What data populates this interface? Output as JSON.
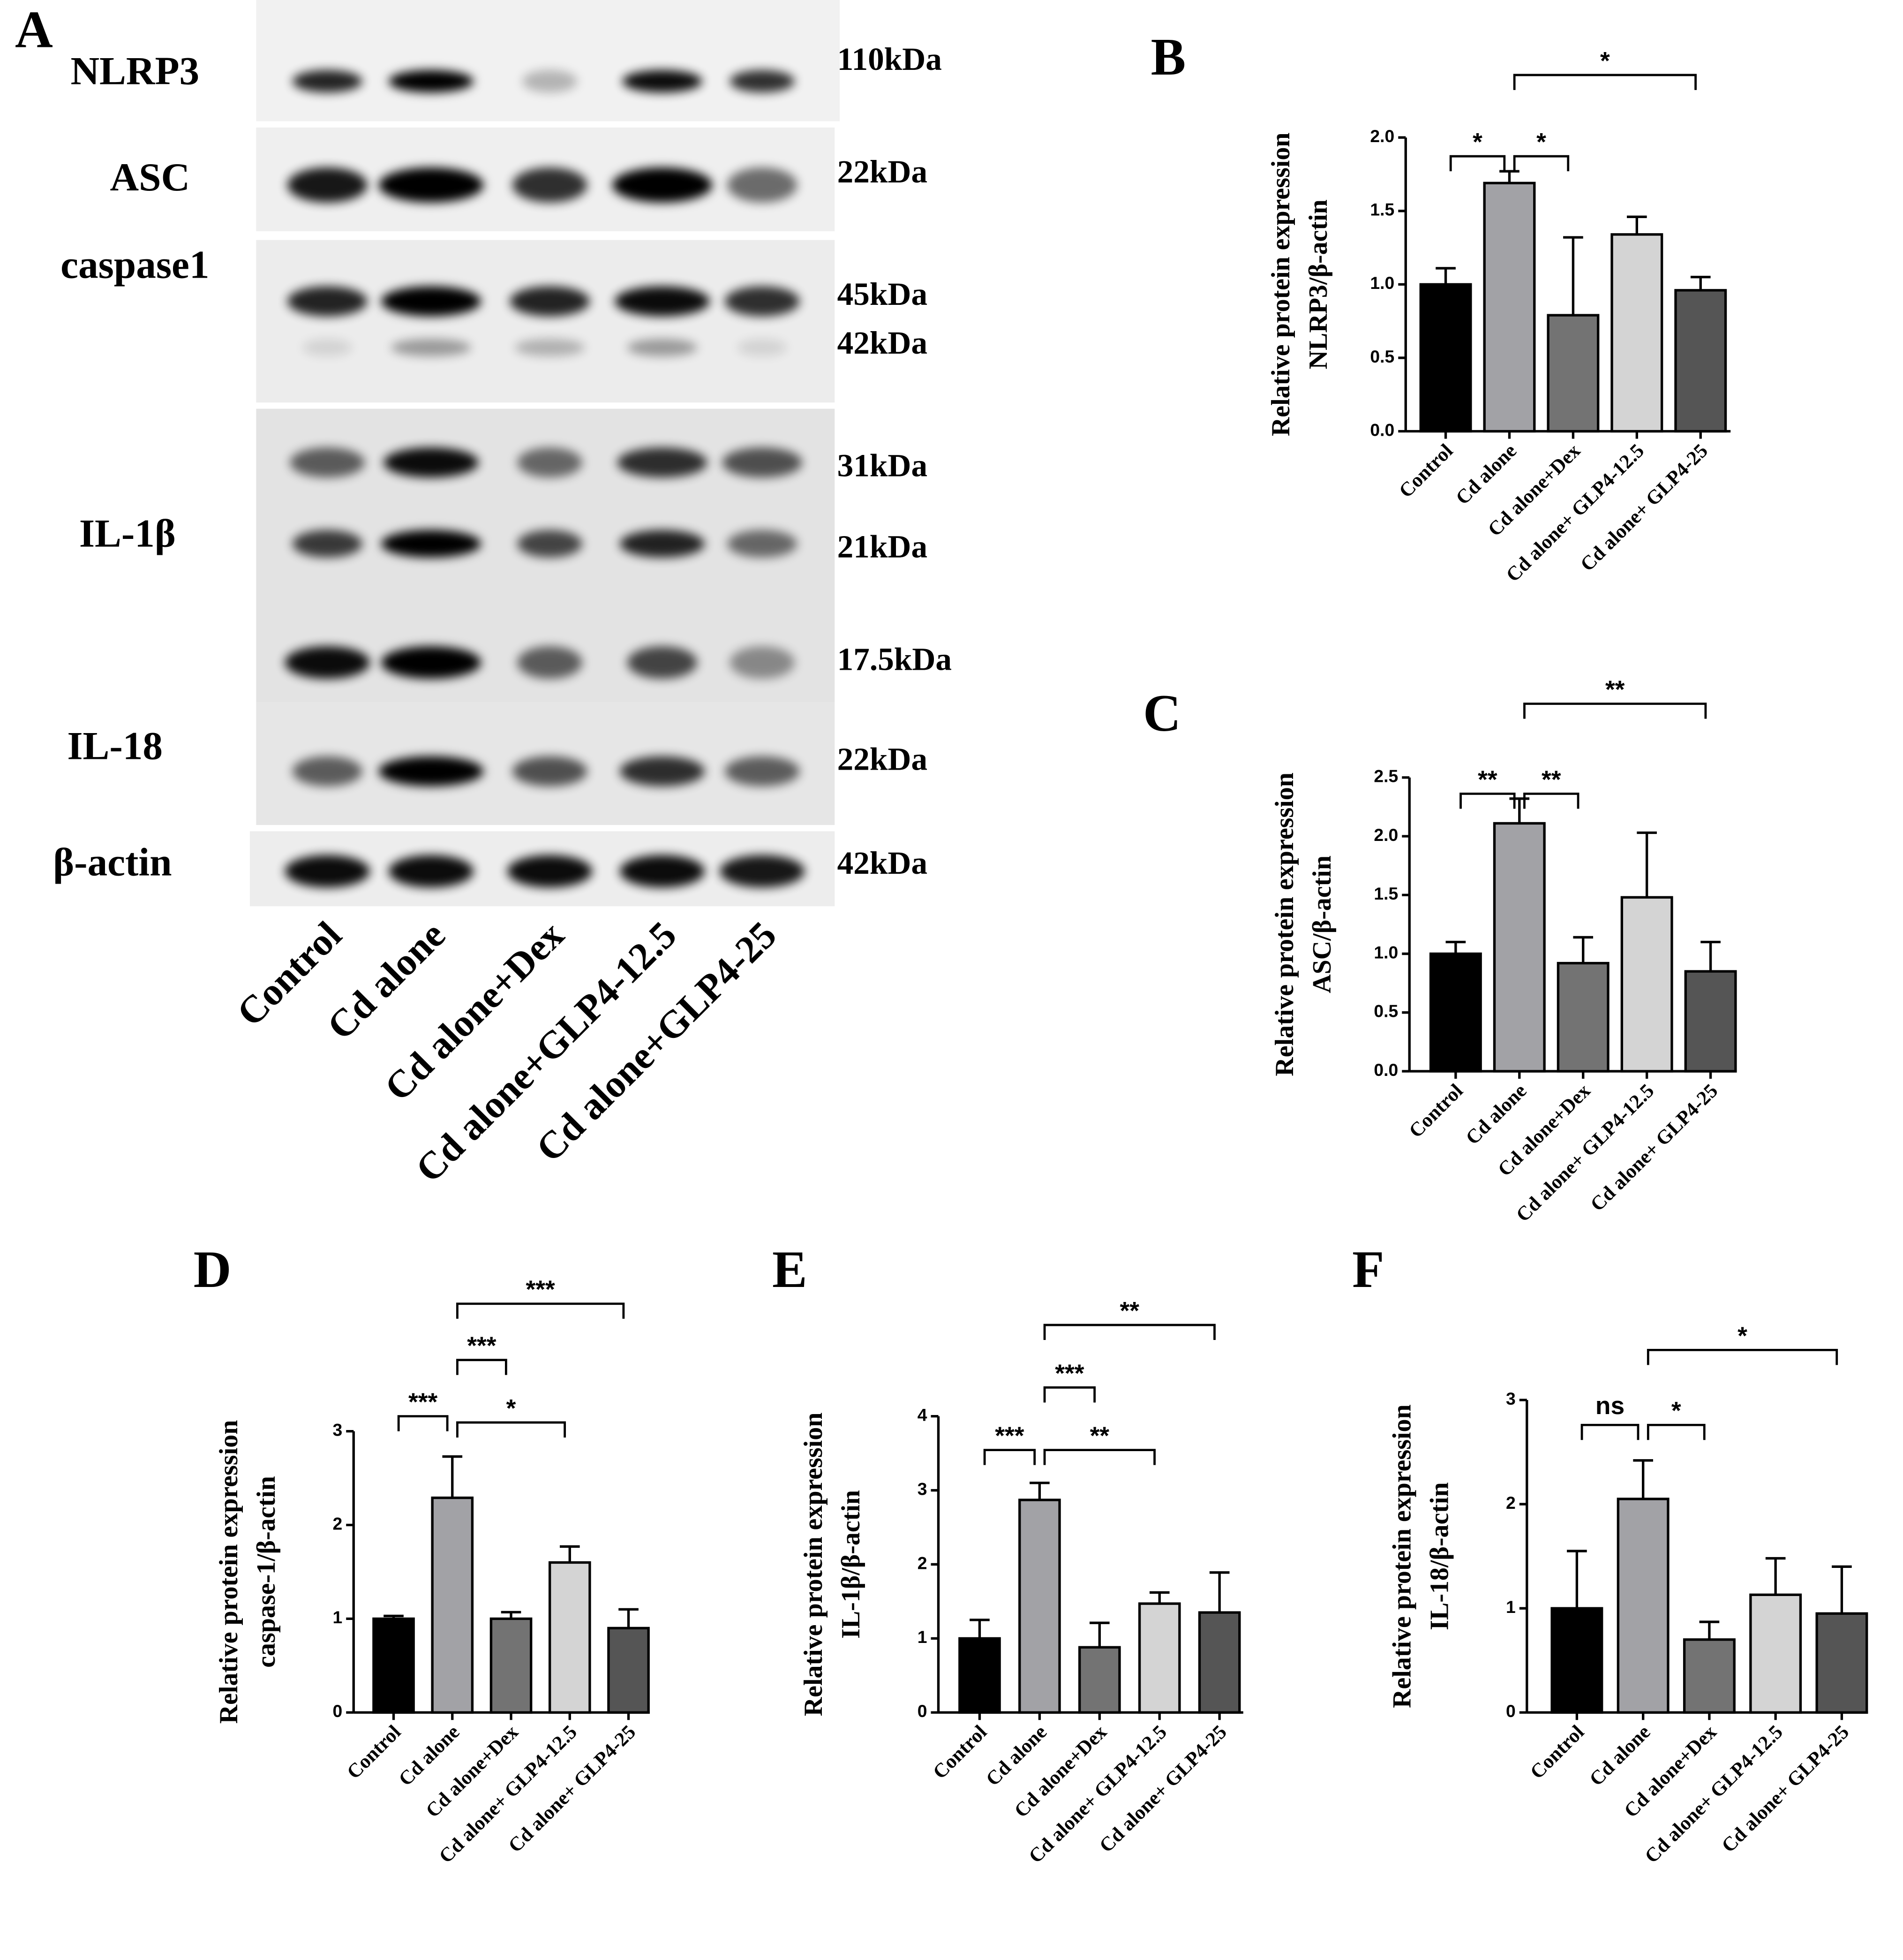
{
  "blot": {
    "panel": "A",
    "proteins": [
      "NLRP3",
      "ASC",
      "caspase1",
      "IL-1β",
      "IL-18",
      "β-actin"
    ],
    "sizes": [
      "110kDa",
      "22kDa",
      "45kDa",
      "42kDa",
      "31kDa",
      "21kDa",
      "17.5kDa",
      "22kDa",
      "42kDa"
    ],
    "lanes": [
      "Control",
      "Cd alone",
      "Cd alone+Dex",
      "Cd alone+GLP4-12.5",
      "Cd alone+GLP4-25"
    ]
  },
  "chart_data": [
    {
      "type": "bar",
      "panel": "B",
      "ylabel": [
        "Relative protein expression",
        "NLRP3/β-actin"
      ],
      "categories": [
        "Control",
        "Cd alone",
        "Cd alone+Dex",
        "Cd alone+ GLP4-12.5",
        "Cd alone+ GLP4-25"
      ],
      "values": [
        1.0,
        1.69,
        0.79,
        1.34,
        0.96
      ],
      "errors": [
        0.11,
        0.08,
        0.53,
        0.12,
        0.09
      ],
      "colors": [
        "#000000",
        "#a2a2a6",
        "#737373",
        "#d4d4d4",
        "#555555"
      ],
      "ylim": [
        0,
        2.0
      ],
      "yticks": [
        {
          "value": 0,
          "label": "0.0"
        },
        {
          "value": 0.5,
          "label": "0.5"
        },
        {
          "value": 1,
          "label": "1.0"
        },
        {
          "value": 1.5,
          "label": "1.5"
        },
        {
          "value": 2,
          "label": "2.0"
        }
      ],
      "brackets": [
        {
          "label": "*",
          "between": [
            "Control",
            "Cd alone"
          ]
        },
        {
          "label": "*",
          "between": [
            "Cd alone",
            "Cd alone+Dex"
          ]
        },
        {
          "label": "*",
          "between": [
            "Cd alone",
            "Cd alone+ GLP4-25"
          ]
        }
      ]
    },
    {
      "type": "bar",
      "panel": "C",
      "ylabel": [
        "Relative protein expression",
        "ASC/β-actin"
      ],
      "categories": [
        "Control",
        "Cd alone",
        "Cd alone+Dex",
        "Cd alone+ GLP4-12.5",
        "Cd alone+ GLP4-25"
      ],
      "values": [
        1.0,
        2.11,
        0.92,
        1.48,
        0.85
      ],
      "errors": [
        0.1,
        0.21,
        0.22,
        0.55,
        0.25
      ],
      "colors": [
        "#000000",
        "#a2a2a6",
        "#737373",
        "#d4d4d4",
        "#555555"
      ],
      "ylim": [
        0,
        2.5
      ],
      "yticks": [
        {
          "value": 0,
          "label": "0.0"
        },
        {
          "value": 0.5,
          "label": "0.5"
        },
        {
          "value": 1,
          "label": "1.0"
        },
        {
          "value": 1.5,
          "label": "1.5"
        },
        {
          "value": 2,
          "label": "2.0"
        },
        {
          "value": 2.5,
          "label": "2.5"
        }
      ],
      "brackets": [
        {
          "label": "**",
          "between": [
            "Control",
            "Cd alone"
          ]
        },
        {
          "label": "**",
          "between": [
            "Cd alone",
            "Cd alone+Dex"
          ]
        },
        {
          "label": "**",
          "between": [
            "Cd alone",
            "Cd alone+ GLP4-25"
          ]
        }
      ]
    },
    {
      "type": "bar",
      "panel": "D",
      "ylabel": [
        "Relative protein expression",
        "caspase-1/β-actin"
      ],
      "categories": [
        "Control",
        "Cd alone",
        "Cd alone+Dex",
        "Cd alone+ GLP4-12.5",
        "Cd alone+ GLP4-25"
      ],
      "values": [
        1.0,
        2.29,
        1.0,
        1.6,
        0.9
      ],
      "errors": [
        0.03,
        0.44,
        0.07,
        0.17,
        0.2
      ],
      "colors": [
        "#000000",
        "#a2a2a6",
        "#737373",
        "#d4d4d4",
        "#555555"
      ],
      "ylim": [
        0,
        3
      ],
      "yticks": [
        0,
        1,
        2,
        3
      ],
      "brackets": [
        {
          "label": "***",
          "between": [
            "Control",
            "Cd alone"
          ]
        },
        {
          "label": "***",
          "between": [
            "Cd alone",
            "Cd alone+Dex"
          ]
        },
        {
          "label": "*",
          "between": [
            "Cd alone",
            "Cd alone+ GLP4-12.5"
          ]
        },
        {
          "label": "***",
          "between": [
            "Cd alone",
            "Cd alone+ GLP4-25"
          ]
        }
      ]
    },
    {
      "type": "bar",
      "panel": "E",
      "ylabel": [
        "Relative protein expression",
        "IL-1β/β-actin"
      ],
      "categories": [
        "Control",
        "Cd alone",
        "Cd alone+Dex",
        "Cd alone+ GLP4-12.5",
        "Cd alone+ GLP4-25"
      ],
      "values": [
        1.0,
        2.87,
        0.88,
        1.47,
        1.35
      ],
      "errors": [
        0.25,
        0.23,
        0.33,
        0.15,
        0.54
      ],
      "colors": [
        "#000000",
        "#a2a2a6",
        "#737373",
        "#d4d4d4",
        "#555555"
      ],
      "ylim": [
        0,
        4
      ],
      "yticks": [
        0,
        1,
        2,
        3,
        4
      ],
      "brackets": [
        {
          "label": "***",
          "between": [
            "Control",
            "Cd alone"
          ]
        },
        {
          "label": "***",
          "between": [
            "Cd alone",
            "Cd alone+Dex"
          ]
        },
        {
          "label": "**",
          "between": [
            "Cd alone",
            "Cd alone+ GLP4-12.5"
          ]
        },
        {
          "label": "**",
          "between": [
            "Cd alone",
            "Cd alone+ GLP4-25"
          ]
        }
      ]
    },
    {
      "type": "bar",
      "panel": "F",
      "ylabel": [
        "Relative protein expression",
        "IL-18/β-actin"
      ],
      "categories": [
        "Control",
        "Cd alone",
        "Cd alone+Dex",
        "Cd alone+ GLP4-12.5",
        "Cd alone+ GLP4-25"
      ],
      "values": [
        1.0,
        2.05,
        0.7,
        1.13,
        0.95
      ],
      "errors": [
        0.55,
        0.37,
        0.17,
        0.35,
        0.45
      ],
      "colors": [
        "#000000",
        "#a2a2a6",
        "#737373",
        "#d4d4d4",
        "#555555"
      ],
      "ylim": [
        0,
        3
      ],
      "yticks": [
        0,
        1,
        2,
        3
      ],
      "brackets": [
        {
          "label": "ns",
          "between": [
            "Control",
            "Cd alone"
          ]
        },
        {
          "label": "*",
          "between": [
            "Cd alone",
            "Cd alone+Dex"
          ]
        },
        {
          "label": "*",
          "between": [
            "Cd alone",
            "Cd alone+ GLP4-25"
          ]
        }
      ]
    }
  ]
}
